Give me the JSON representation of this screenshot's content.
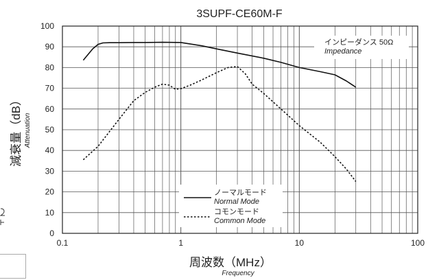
{
  "chart_data": {
    "type": "line",
    "title": "3SUPF-CE60M-F",
    "xlabel": "周波数（MHz）",
    "xlabel_sub": "Frequency",
    "ylabel": "減衰量（dB）",
    "ylabel_sub": "Attenuation",
    "x_scale": "log",
    "xlim": [
      0.1,
      100
    ],
    "ylim": [
      0,
      100
    ],
    "x_ticks": [
      "0.1",
      "1",
      "10",
      "100"
    ],
    "y_ticks": [
      "0",
      "10",
      "20",
      "30",
      "40",
      "50",
      "60",
      "70",
      "80",
      "90",
      "100"
    ],
    "grid": true,
    "impedance_note": "インピーダンス 50Ω",
    "impedance_note_sub": "Impedance",
    "legend_position": "bottom-center",
    "series": [
      {
        "name": "ノーマルモード",
        "name_sub": "Normal Mode",
        "style": "solid",
        "x": [
          0.15,
          0.18,
          0.2,
          0.22,
          0.25,
          0.3,
          0.4,
          0.5,
          0.7,
          1.0,
          1.5,
          2.0,
          3.0,
          5.0,
          7.0,
          10,
          15,
          20,
          25,
          30
        ],
        "y": [
          83.5,
          89,
          91.2,
          91.9,
          92,
          92,
          92.1,
          92.1,
          92.2,
          92.1,
          90.5,
          89,
          87,
          84.5,
          82.5,
          80,
          78,
          76.5,
          73.5,
          70.5
        ]
      },
      {
        "name": "コモンモード",
        "name_sub": "Common Mode",
        "style": "dashed",
        "x": [
          0.15,
          0.2,
          0.3,
          0.4,
          0.5,
          0.6,
          0.7,
          0.8,
          0.9,
          1.0,
          1.2,
          1.5,
          2.0,
          2.5,
          3.0,
          3.5,
          4.0,
          5.0,
          7.0,
          10,
          15,
          20,
          25,
          30
        ],
        "y": [
          35.5,
          42,
          55,
          64,
          68,
          70.5,
          72,
          71.5,
          69.5,
          69.8,
          71.5,
          74,
          77.5,
          80,
          80.5,
          77,
          72,
          67.5,
          60,
          52,
          44,
          37,
          31,
          25
        ]
      }
    ]
  }
}
